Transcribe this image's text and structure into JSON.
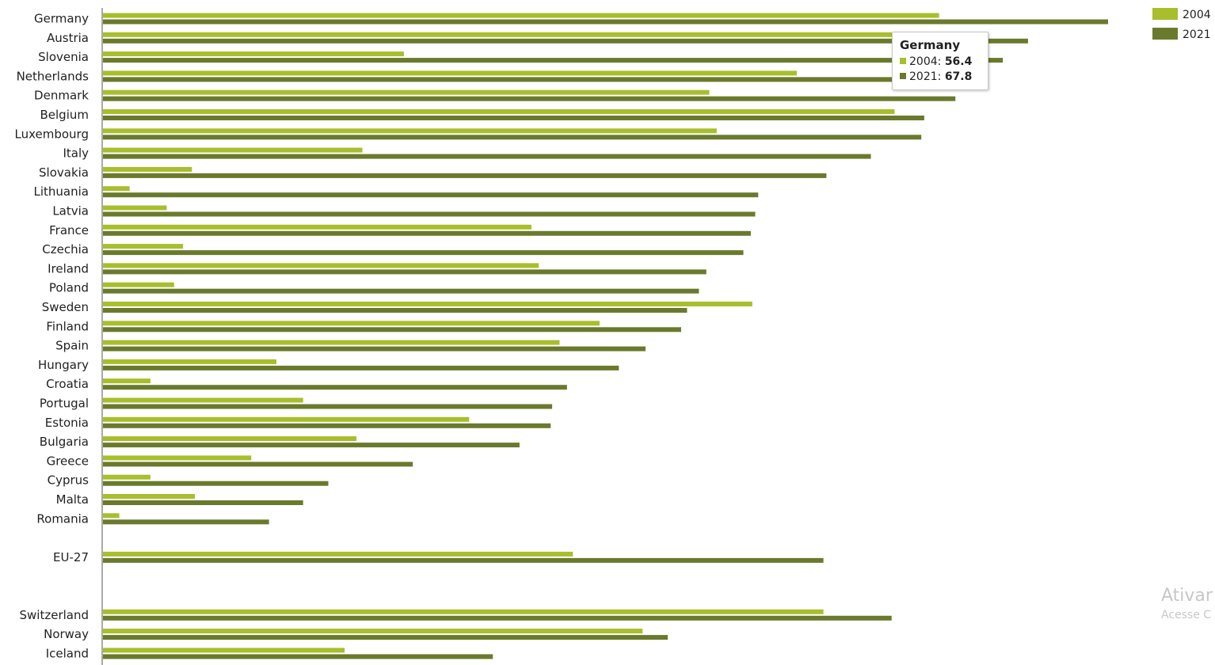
{
  "chart_data": {
    "type": "bar",
    "orientation": "horizontal",
    "categories": [
      "Germany",
      "Austria",
      "Slovenia",
      "Netherlands",
      "Denmark",
      "Belgium",
      "Luxembourg",
      "Italy",
      "Slovakia",
      "Lithuania",
      "Latvia",
      "France",
      "Czechia",
      "Ireland",
      "Poland",
      "Sweden",
      "Finland",
      "Spain",
      "Hungary",
      "Croatia",
      "Portugal",
      "Estonia",
      "Bulgaria",
      "Greece",
      "Cyprus",
      "Malta",
      "Romania",
      "",
      "EU-27",
      "",
      "",
      "Switzerland",
      "Norway",
      "Iceland"
    ],
    "series": [
      {
        "name": "2004",
        "color": "#a8be2c",
        "values": [
          56.4,
          53.4,
          20.3,
          46.8,
          40.9,
          53.4,
          41.4,
          17.5,
          6.0,
          1.8,
          4.3,
          28.9,
          5.4,
          29.4,
          4.8,
          43.8,
          33.5,
          30.8,
          11.7,
          3.2,
          13.5,
          24.7,
          17.1,
          10.0,
          3.2,
          6.2,
          1.1,
          null,
          31.7,
          null,
          null,
          48.6,
          36.4,
          16.3
        ]
      },
      {
        "name": "2021",
        "color": "#6a7a2c",
        "values": [
          67.8,
          62.4,
          60.7,
          59.7,
          57.5,
          55.4,
          55.2,
          51.8,
          48.8,
          44.2,
          44.0,
          43.7,
          43.2,
          40.7,
          40.2,
          39.4,
          39.0,
          36.6,
          34.8,
          31.3,
          30.3,
          30.2,
          28.1,
          20.9,
          15.2,
          13.5,
          11.2,
          null,
          48.6,
          null,
          null,
          53.2,
          38.1,
          26.3
        ]
      }
    ],
    "xlim": [
      0,
      71
    ],
    "legend_position": "top-right",
    "grid": false,
    "tooltip": {
      "title": "Germany",
      "rows": [
        {
          "series": "2004",
          "value": "56.4"
        },
        {
          "series": "2021",
          "value": "67.8"
        }
      ]
    }
  },
  "watermark": {
    "line1": "Ativar",
    "line2": "Acesse C"
  }
}
